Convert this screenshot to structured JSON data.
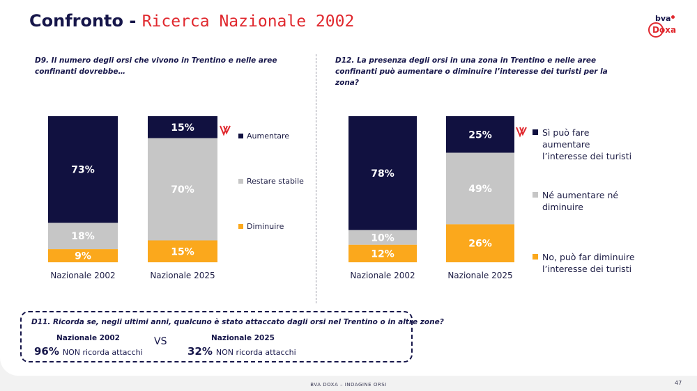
{
  "page": {
    "title_main": "Confronto -",
    "title_accent": "Ricerca Nazionale 2002",
    "logo_bva": "bva",
    "logo_doxa": "Doxa",
    "footer": "BVA DOXA – INDAGINE ORSI",
    "page_number": "47"
  },
  "colors": {
    "navy": "#111140",
    "gray": "#c6c6c6",
    "orange": "#fba81c",
    "red": "#e0282e"
  },
  "chart_data": [
    {
      "type": "bar",
      "stacked": true,
      "question": "D9. Il numero degli orsi che vivono in Trentino e nelle aree confinanti dovrebbe…",
      "categories": [
        "Nazionale 2002",
        "Nazionale 2025"
      ],
      "series": [
        {
          "name": "Aumentare",
          "color": "#111140",
          "label_color": "#ffffff",
          "values": [
            73,
            15
          ]
        },
        {
          "name": "Restare stabile",
          "color": "#c6c6c6",
          "label_color": "#ffffff",
          "values": [
            18,
            70
          ]
        },
        {
          "name": "Diminuire",
          "color": "#fba81c",
          "label_color": "#ffffff",
          "values": [
            9,
            15
          ]
        }
      ],
      "unit": "%"
    },
    {
      "type": "bar",
      "stacked": true,
      "question": "D12. La presenza degli orsi in una zona in Trentino e nelle aree confinanti può aumentare o diminuire l’interesse dei turisti per la zona?",
      "categories": [
        "Nazionale 2002",
        "Nazionale 2025"
      ],
      "series": [
        {
          "name": "Sì può fare aumentare l’interesse dei turisti",
          "color": "#111140",
          "label_color": "#ffffff",
          "values": [
            78,
            25
          ]
        },
        {
          "name": "Né aumentare né diminuire",
          "color": "#c6c6c6",
          "label_color": "#ffffff",
          "values": [
            10,
            49
          ]
        },
        {
          "name": "No, può far diminuire l’interesse dei turisti",
          "color": "#fba81c",
          "label_color": "#ffffff",
          "values": [
            12,
            26
          ]
        }
      ],
      "unit": "%"
    }
  ],
  "recall": {
    "question": "D11. Ricorda se, negli ultimi anni, qualcuno è stato attaccato dagli orsi nel Trentino o in altre zone?",
    "left_label": "Nazionale 2002",
    "left_pct": "96%",
    "left_text": "NON ricorda attacchi",
    "vs": "VS",
    "right_label": "Nazionale 2025",
    "right_pct": "32%",
    "right_text": "NON ricorda attacchi"
  }
}
